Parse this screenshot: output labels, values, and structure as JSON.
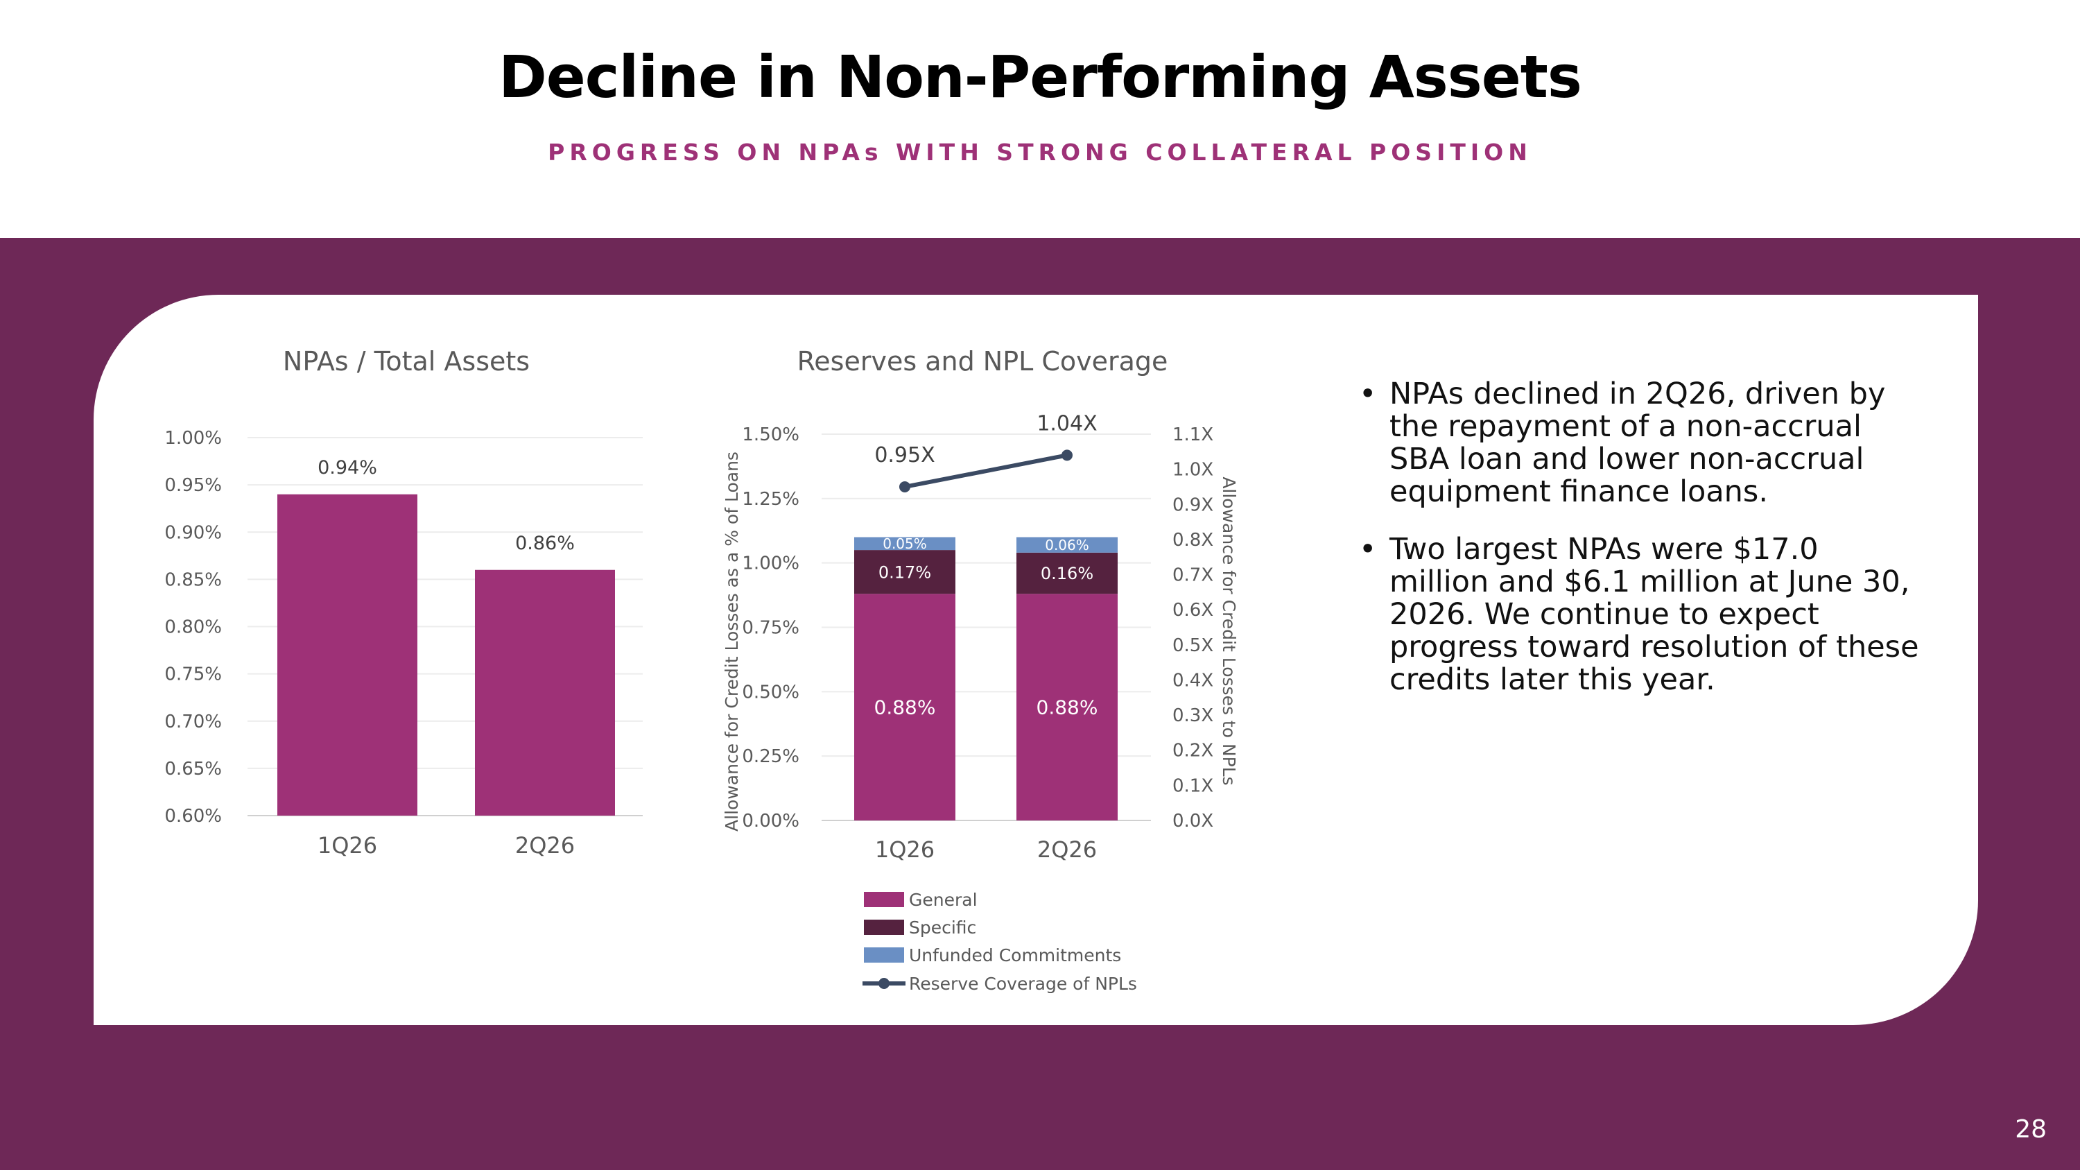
{
  "slide": {
    "title": "Decline in Non-Performing Assets",
    "subtitle": "PROGRESS ON NPAs WITH STRONG COLLATERAL POSITION",
    "page_number": "28"
  },
  "colors": {
    "brand_purple": "#6E2857",
    "bar_magenta": "#9E3177",
    "specific": "#55223F",
    "unfunded": "#6A8FC4",
    "line": "#3B4A63",
    "subtitle": "#9E3177"
  },
  "bullets": [
    "NPAs declined in 2Q26, driven by the repayment of a non-accrual SBA loan and lower non-accrual equipment finance loans.",
    "Two largest NPAs were $17.0 million and $6.1 million at June 30, 2026. We continue to expect progress toward resolution of these credits later this year."
  ],
  "chart_data": [
    {
      "type": "bar",
      "title": "NPAs / Total Assets",
      "categories": [
        "1Q26",
        "2Q26"
      ],
      "values": [
        0.94,
        0.86
      ],
      "data_labels": [
        "0.94%",
        "0.86%"
      ],
      "ylim": [
        0.6,
        1.0
      ],
      "yticks": [
        "0.60%",
        "0.65%",
        "0.70%",
        "0.75%",
        "0.80%",
        "0.85%",
        "0.90%",
        "0.95%",
        "1.00%"
      ],
      "grid": true
    },
    {
      "type": "bar",
      "stacked": true,
      "title": "Reserves and NPL Coverage",
      "categories": [
        "1Q26",
        "2Q26"
      ],
      "ylabel": "Allowance for Credit Losses as a % of Loans",
      "y2label": "Allowance for Credit Losses to NPLs",
      "ylim": [
        0,
        1.5
      ],
      "y2lim": [
        0,
        1.1
      ],
      "yticks": [
        "0.00%",
        "0.25%",
        "0.50%",
        "0.75%",
        "1.00%",
        "1.25%",
        "1.50%"
      ],
      "y2ticks": [
        "0.0X",
        "0.1X",
        "0.2X",
        "0.3X",
        "0.4X",
        "0.5X",
        "0.6X",
        "0.7X",
        "0.8X",
        "0.9X",
        "1.0X",
        "1.1X"
      ],
      "series": [
        {
          "name": "General",
          "values": [
            0.88,
            0.88
          ],
          "labels": [
            "0.88%",
            "0.88%"
          ]
        },
        {
          "name": "Specific",
          "values": [
            0.17,
            0.16
          ],
          "labels": [
            "0.17%",
            "0.16%"
          ]
        },
        {
          "name": "Unfunded Commitments",
          "values": [
            0.05,
            0.06
          ],
          "labels": [
            "0.05%",
            "0.06%"
          ]
        },
        {
          "name": "Reserve Coverage of NPLs",
          "type": "line",
          "axis": "y2",
          "values": [
            0.95,
            1.04
          ],
          "labels": [
            "0.95X",
            "1.04X"
          ]
        }
      ],
      "legend": "bottom",
      "grid": true
    }
  ]
}
